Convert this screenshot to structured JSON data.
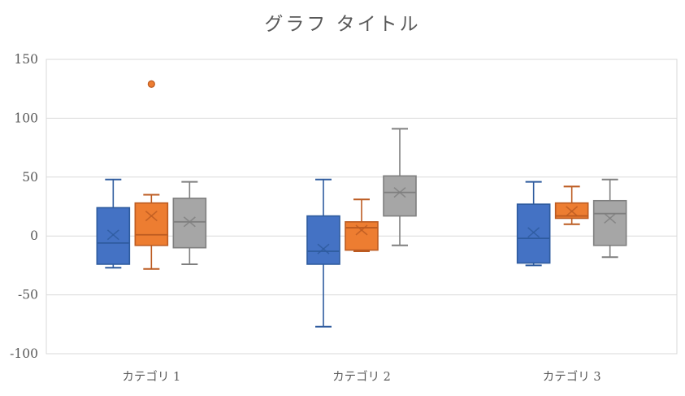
{
  "title": "グラフ タイトル",
  "colors": {
    "text": "#595959",
    "gridline": "#D9D9D9",
    "plot_border": "#D9D9D9",
    "background": "#FFFFFF"
  },
  "chart_data": {
    "type": "boxplot",
    "title": "グラフ タイトル",
    "categories": [
      "カテゴリ 1",
      "カテゴリ 2",
      "カテゴリ 3"
    ],
    "y_axis": {
      "min": -100,
      "max": 150,
      "step": 50,
      "ticks": [
        150,
        100,
        50,
        0,
        -50,
        -100
      ]
    },
    "grid": true,
    "legend": "none",
    "mean_marker": "x",
    "series": [
      {
        "name": "blue",
        "fill": "#4472C4",
        "stroke": "#2E5B9E",
        "boxes": [
          {
            "whisker_low": -27,
            "q1": -24,
            "median": -6,
            "q3": 24,
            "whisker_high": 48,
            "mean": 1,
            "outliers": []
          },
          {
            "whisker_low": -77,
            "q1": -24,
            "median": -13,
            "q3": 17,
            "whisker_high": 48,
            "mean": -11,
            "outliers": []
          },
          {
            "whisker_low": -25,
            "q1": -23,
            "median": -2,
            "q3": 27,
            "whisker_high": 46,
            "mean": 3,
            "outliers": []
          }
        ]
      },
      {
        "name": "orange",
        "fill": "#ED7D31",
        "stroke": "#BC5B21",
        "boxes": [
          {
            "whisker_low": -28,
            "q1": -8,
            "median": 1,
            "q3": 28,
            "whisker_high": 35,
            "mean": 17,
            "outliers": [
              129
            ]
          },
          {
            "whisker_low": -13,
            "q1": -12,
            "median": 7,
            "q3": 12,
            "whisker_high": 31,
            "mean": 5,
            "outliers": []
          },
          {
            "whisker_low": 10,
            "q1": 15,
            "median": 17,
            "q3": 28,
            "whisker_high": 42,
            "mean": 21,
            "outliers": []
          }
        ]
      },
      {
        "name": "gray",
        "fill": "#A6A6A6",
        "stroke": "#7F7F7F",
        "boxes": [
          {
            "whisker_low": -24,
            "q1": -10,
            "median": 12,
            "q3": 32,
            "whisker_high": 46,
            "mean": 12,
            "outliers": []
          },
          {
            "whisker_low": -8,
            "q1": 17,
            "median": 37,
            "q3": 51,
            "whisker_high": 91,
            "mean": 37,
            "outliers": []
          },
          {
            "whisker_low": -18,
            "q1": -8,
            "median": 19,
            "q3": 30,
            "whisker_high": 48,
            "mean": 15,
            "outliers": []
          }
        ]
      }
    ]
  }
}
